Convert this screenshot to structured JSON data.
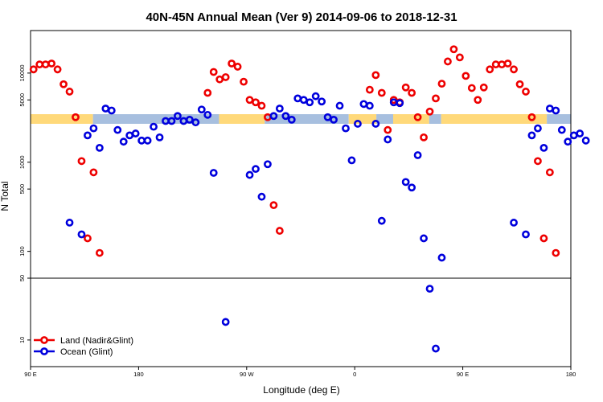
{
  "chart_data": {
    "type": "scatter",
    "title": "40N-45N Annual Mean (Ver 9)   2014-09-06 to 2018-12-31",
    "xlabel": "Longitude (deg E)",
    "ylabel": "N Total",
    "x_ticks": [
      {
        "x": 90,
        "label": "90 E"
      },
      {
        "x": 180,
        "label": "180"
      },
      {
        "x": 270,
        "label": "90 W"
      },
      {
        "x": 360,
        "label": "0"
      },
      {
        "x": 450,
        "label": "90 E"
      },
      {
        "x": 540,
        "label": "180"
      }
    ],
    "xlim": [
      90,
      540
    ],
    "y_scale": "log",
    "upper_ylim": [
      50,
      30000
    ],
    "lower_ylim": [
      5,
      50
    ],
    "upper_ticks": [
      "100",
      "500",
      "1000",
      "5000",
      "10000"
    ],
    "upper_tick_values": [
      100,
      500,
      1000,
      5000,
      10000
    ],
    "lower_ticks": [
      "10",
      "50"
    ],
    "lower_tick_values": [
      10,
      50
    ],
    "legend_position": "bottom-left",
    "colors": {
      "land": "#ee0000",
      "ocean": "#0000dd",
      "band_land": "#ffd97a",
      "band_ocean": "#a7bfdf"
    },
    "series": [
      {
        "name": "Land (Nadir&Glint)",
        "color": "#ee0000",
        "points": [
          [
            92.5,
            11000
          ],
          [
            97.5,
            12500
          ],
          [
            102.5,
            12500
          ],
          [
            107.5,
            12800
          ],
          [
            112.5,
            11000
          ],
          [
            117.5,
            7500
          ],
          [
            122.5,
            6200
          ],
          [
            127.5,
            3200
          ],
          [
            132.5,
            1030
          ],
          [
            137.5,
            140
          ],
          [
            142.5,
            770
          ],
          [
            147.5,
            96
          ],
          [
            237.5,
            6000
          ],
          [
            242.5,
            10300
          ],
          [
            247.5,
            8500
          ],
          [
            252.5,
            9000
          ],
          [
            257.5,
            12800
          ],
          [
            262.5,
            11800
          ],
          [
            267.5,
            8000
          ],
          [
            272.5,
            5000
          ],
          [
            277.5,
            4700
          ],
          [
            282.5,
            4300
          ],
          [
            287.5,
            3200
          ],
          [
            292.5,
            330
          ],
          [
            297.5,
            170
          ],
          [
            372.5,
            6500
          ],
          [
            377.5,
            9500
          ],
          [
            382.5,
            6000
          ],
          [
            387.5,
            2300
          ],
          [
            392.5,
            5000
          ],
          [
            397.5,
            4700
          ],
          [
            402.5,
            6900
          ],
          [
            407.5,
            6000
          ],
          [
            412.5,
            3200
          ],
          [
            417.5,
            1900
          ],
          [
            422.5,
            3700
          ],
          [
            427.5,
            5200
          ],
          [
            432.5,
            7600
          ],
          [
            437.5,
            13500
          ],
          [
            442.5,
            18500
          ],
          [
            447.5,
            15000
          ],
          [
            452.5,
            9300
          ],
          [
            457.5,
            6800
          ],
          [
            462.5,
            5000
          ],
          [
            467.5,
            6900
          ],
          [
            472.5,
            11000
          ],
          [
            477.5,
            12500
          ],
          [
            482.5,
            12500
          ],
          [
            487.5,
            12800
          ],
          [
            492.5,
            11000
          ],
          [
            497.5,
            7500
          ],
          [
            502.5,
            6200
          ],
          [
            507.5,
            3200
          ],
          [
            512.5,
            1030
          ],
          [
            517.5,
            140
          ],
          [
            522.5,
            770
          ],
          [
            527.5,
            96
          ]
        ]
      },
      {
        "name": "Ocean (Glint)",
        "color": "#0000dd",
        "points": [
          [
            122.5,
            210
          ],
          [
            132.5,
            155
          ],
          [
            137.5,
            2000
          ],
          [
            142.5,
            2400
          ],
          [
            147.5,
            1450
          ],
          [
            152.5,
            4000
          ],
          [
            157.5,
            3800
          ],
          [
            162.5,
            2300
          ],
          [
            167.5,
            1700
          ],
          [
            172.5,
            2000
          ],
          [
            177.5,
            2100
          ],
          [
            182.5,
            1750
          ],
          [
            187.5,
            1750
          ],
          [
            192.5,
            2500
          ],
          [
            197.5,
            1900
          ],
          [
            202.5,
            2900
          ],
          [
            207.5,
            2900
          ],
          [
            212.5,
            3300
          ],
          [
            217.5,
            2900
          ],
          [
            222.5,
            3000
          ],
          [
            227.5,
            2800
          ],
          [
            232.5,
            3900
          ],
          [
            237.5,
            3400
          ],
          [
            242.5,
            760
          ],
          [
            252.5,
            16
          ],
          [
            272.5,
            720
          ],
          [
            277.5,
            840
          ],
          [
            282.5,
            410
          ],
          [
            287.5,
            950
          ],
          [
            292.5,
            3300
          ],
          [
            297.5,
            4000
          ],
          [
            302.5,
            3300
          ],
          [
            307.5,
            3000
          ],
          [
            312.5,
            5200
          ],
          [
            317.5,
            5000
          ],
          [
            322.5,
            4700
          ],
          [
            327.5,
            5500
          ],
          [
            332.5,
            4800
          ],
          [
            337.5,
            3200
          ],
          [
            342.5,
            3000
          ],
          [
            347.5,
            4300
          ],
          [
            352.5,
            2400
          ],
          [
            357.5,
            1050
          ],
          [
            362.5,
            2700
          ],
          [
            367.5,
            4500
          ],
          [
            372.5,
            4300
          ],
          [
            377.5,
            2700
          ],
          [
            382.5,
            220
          ],
          [
            387.5,
            1800
          ],
          [
            392.5,
            4700
          ],
          [
            397.5,
            4600
          ],
          [
            402.5,
            600
          ],
          [
            407.5,
            520
          ],
          [
            412.5,
            1200
          ],
          [
            417.5,
            140
          ],
          [
            422.5,
            38
          ],
          [
            427.5,
            8
          ],
          [
            432.5,
            85
          ],
          [
            492.5,
            210
          ],
          [
            502.5,
            155
          ],
          [
            507.5,
            2000
          ],
          [
            512.5,
            2400
          ],
          [
            517.5,
            1450
          ],
          [
            522.5,
            4000
          ],
          [
            527.5,
            3800
          ],
          [
            532.5,
            2300
          ],
          [
            537.5,
            1700
          ],
          [
            542.5,
            2000
          ],
          [
            547.5,
            2100
          ],
          [
            552.5,
            1750
          ]
        ]
      }
    ]
  }
}
